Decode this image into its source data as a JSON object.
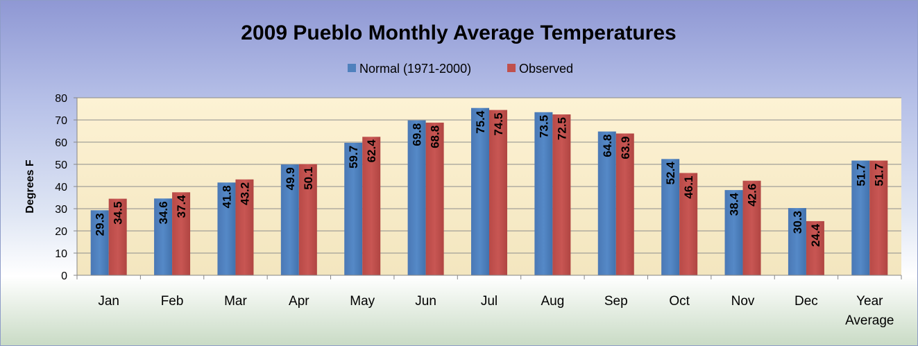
{
  "chart_data": {
    "type": "bar",
    "title": "2009 Pueblo Monthly Average Temperatures",
    "ylabel": "Degrees  F",
    "xlabel": "",
    "ylim": [
      0,
      80
    ],
    "yticks": [
      0,
      10,
      20,
      30,
      40,
      50,
      60,
      70,
      80
    ],
    "grid": true,
    "legend_position": "top-center",
    "categories": [
      "Jan",
      "Feb",
      "Mar",
      "Apr",
      "May",
      "Jun",
      "Jul",
      "Aug",
      "Sep",
      "Oct",
      "Nov",
      "Dec",
      "Year Average"
    ],
    "series": [
      {
        "name": "Normal (1971-2000)",
        "color": "#4f81bd",
        "values": [
          29.3,
          34.6,
          41.8,
          49.9,
          59.7,
          69.8,
          75.4,
          73.5,
          64.8,
          52.4,
          38.4,
          30.3,
          51.7
        ]
      },
      {
        "name": "Observed",
        "color": "#c0504d",
        "values": [
          34.5,
          37.4,
          43.2,
          50.1,
          62.4,
          68.8,
          74.5,
          72.5,
          63.9,
          46.1,
          42.6,
          24.4,
          51.7
        ]
      }
    ]
  }
}
